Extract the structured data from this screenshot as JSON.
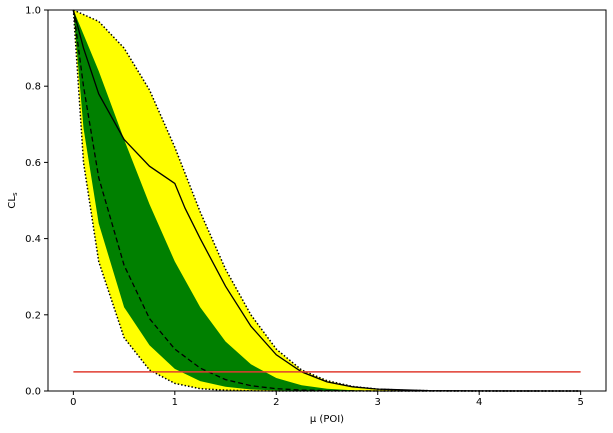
{
  "chart_data": {
    "type": "line",
    "title": "",
    "xlabel": "μ (POI)",
    "ylabel_main": "CL",
    "ylabel_sub": "s",
    "xlim": [
      -0.25,
      5.25
    ],
    "ylim": [
      0,
      1
    ],
    "xticks": [
      0,
      1,
      2,
      3,
      4,
      5
    ],
    "yticks": [
      0.0,
      0.2,
      0.4,
      0.6,
      0.8,
      1.0
    ],
    "xtick_labels": [
      "0",
      "1",
      "2",
      "3",
      "4",
      "5"
    ],
    "ytick_labels": [
      "0.0",
      "0.2",
      "0.4",
      "0.6",
      "0.8",
      "1.0"
    ],
    "grid": false,
    "legend": "none",
    "colors": {
      "band_2sigma": "#ffff00",
      "band_1sigma": "#008000",
      "expected": "#000000",
      "observed": "#000000",
      "band_edge": "#000000",
      "threshold": "#e03c31"
    },
    "threshold": 0.05,
    "series": [
      {
        "role": "expected_plus_2sigma",
        "x": [
          0,
          0.25,
          0.5,
          0.75,
          1.0,
          1.25,
          1.5,
          1.75,
          2.0,
          2.25,
          2.5,
          2.75,
          3.0,
          3.25,
          3.5,
          4.0,
          5.0
        ],
        "values": [
          1.0,
          0.97,
          0.9,
          0.79,
          0.64,
          0.47,
          0.32,
          0.2,
          0.11,
          0.055,
          0.027,
          0.012,
          0.005,
          0.002,
          0.0008,
          0.0001,
          0.0
        ]
      },
      {
        "role": "expected_plus_1sigma",
        "x": [
          0,
          0.25,
          0.5,
          0.75,
          1.0,
          1.25,
          1.5,
          1.75,
          2.0,
          2.25,
          2.5,
          2.75,
          3.0,
          3.5,
          4.0,
          5.0
        ],
        "values": [
          1.0,
          0.84,
          0.66,
          0.49,
          0.34,
          0.22,
          0.13,
          0.07,
          0.034,
          0.015,
          0.006,
          0.002,
          0.0008,
          0.0001,
          0.0,
          0.0
        ]
      },
      {
        "role": "expected",
        "x": [
          0,
          0.1,
          0.25,
          0.5,
          0.75,
          1.0,
          1.25,
          1.5,
          1.75,
          2.0,
          2.25,
          2.5,
          3.0,
          4.0,
          5.0
        ],
        "values": [
          1.0,
          0.8,
          0.56,
          0.33,
          0.19,
          0.11,
          0.06,
          0.03,
          0.014,
          0.006,
          0.0025,
          0.001,
          0.0001,
          0.0,
          0.0
        ]
      },
      {
        "role": "expected_minus_1sigma",
        "x": [
          0,
          0.1,
          0.25,
          0.5,
          0.75,
          1.0,
          1.25,
          1.5,
          1.75,
          2.0,
          2.5,
          3.0,
          4.0,
          5.0
        ],
        "values": [
          1.0,
          0.69,
          0.44,
          0.22,
          0.12,
          0.058,
          0.026,
          0.011,
          0.004,
          0.0016,
          0.0002,
          0.0,
          0.0,
          0.0
        ]
      },
      {
        "role": "expected_minus_2sigma",
        "x": [
          0,
          0.1,
          0.25,
          0.5,
          0.75,
          1.0,
          1.25,
          1.5,
          1.75,
          2.0,
          3.0,
          5.0
        ],
        "values": [
          1.0,
          0.6,
          0.34,
          0.14,
          0.055,
          0.02,
          0.006,
          0.002,
          0.0005,
          0.0001,
          0.0,
          0.0
        ]
      },
      {
        "role": "observed",
        "x": [
          0,
          0.1,
          0.25,
          0.5,
          0.75,
          1.0,
          1.1,
          1.25,
          1.5,
          1.75,
          2.0,
          2.25,
          2.5,
          2.75,
          3.0,
          3.5,
          4.0,
          5.0
        ],
        "values": [
          1.0,
          0.9,
          0.78,
          0.66,
          0.59,
          0.545,
          0.48,
          0.4,
          0.275,
          0.17,
          0.095,
          0.05,
          0.024,
          0.011,
          0.005,
          0.001,
          0.0002,
          0.0
        ]
      },
      {
        "role": "threshold",
        "x": [
          0,
          5
        ],
        "values": [
          0.05,
          0.05
        ]
      }
    ]
  }
}
